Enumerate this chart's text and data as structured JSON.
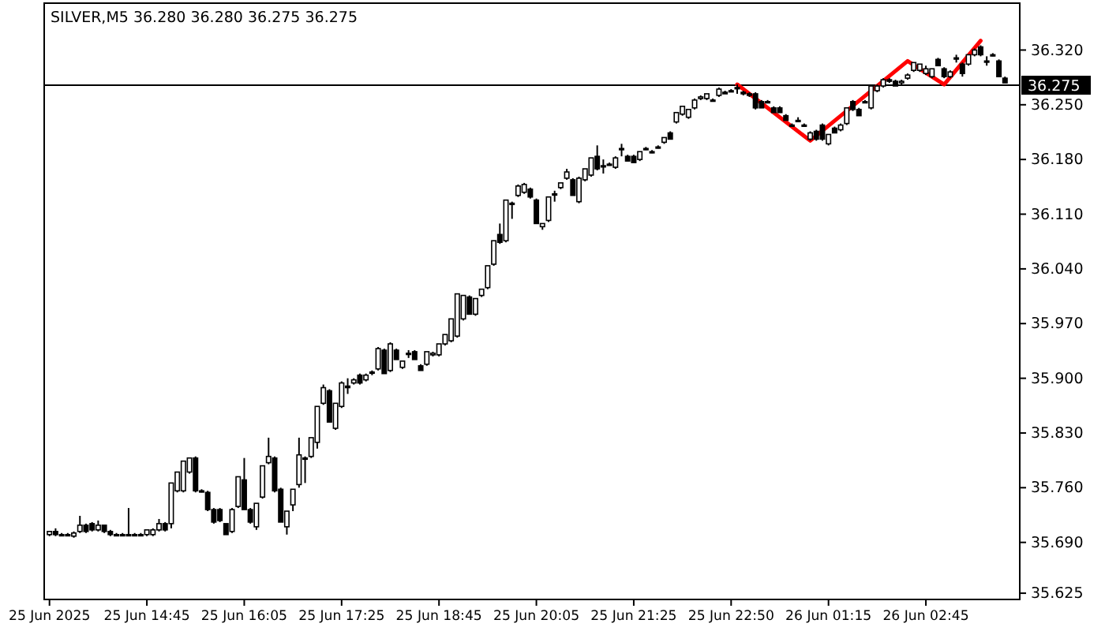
{
  "chart_data": {
    "type": "candlestick",
    "title": "SILVER,M5  36.280 36.280 36.275 36.275",
    "categories": [
      "25 Jun 2025",
      null,
      null,
      null,
      null,
      null,
      null,
      null,
      null,
      null,
      null,
      null,
      null,
      null,
      null,
      null,
      "25 Jun 14:45",
      null,
      null,
      null,
      null,
      null,
      null,
      null,
      null,
      null,
      null,
      null,
      null,
      null,
      null,
      null,
      "25 Jun 16:05",
      null,
      null,
      null,
      null,
      null,
      null,
      null,
      null,
      null,
      null,
      null,
      null,
      null,
      null,
      null,
      "25 Jun 17:25",
      null,
      null,
      null,
      null,
      null,
      null,
      null,
      null,
      null,
      null,
      null,
      null,
      null,
      null,
      null,
      "25 Jun 18:45",
      null,
      null,
      null,
      null,
      null,
      null,
      null,
      null,
      null,
      null,
      null,
      null,
      null,
      null,
      null,
      "25 Jun 20:05",
      null,
      null,
      null,
      null,
      null,
      null,
      null,
      null,
      null,
      null,
      null,
      null,
      null,
      null,
      null,
      "25 Jun 21:25",
      null,
      null,
      null,
      null,
      null,
      null,
      null,
      null,
      null,
      null,
      null,
      null,
      null,
      null,
      null,
      "25 Jun 22:50",
      null,
      null,
      null,
      null,
      null,
      null,
      null,
      null,
      null,
      null,
      null,
      null,
      null,
      null,
      null,
      "26 Jun 01:15",
      null,
      null,
      null,
      null,
      null,
      null,
      null,
      null,
      null,
      null,
      null,
      null,
      null,
      null,
      null,
      "26 Jun 02:45",
      null,
      null,
      null,
      null,
      null,
      null,
      null,
      null,
      null,
      null,
      null,
      null,
      null
    ],
    "ohlc": [
      [
        35.7,
        35.704,
        35.698,
        35.704
      ],
      [
        35.704,
        35.708,
        35.698,
        35.7
      ],
      [
        35.7,
        35.702,
        35.698,
        35.7
      ],
      [
        35.7,
        35.702,
        35.698,
        35.7
      ],
      [
        35.698,
        35.704,
        35.696,
        35.702
      ],
      [
        35.704,
        35.724,
        35.702,
        35.712
      ],
      [
        35.712,
        35.714,
        35.702,
        35.704
      ],
      [
        35.714,
        35.716,
        35.704,
        35.706
      ],
      [
        35.706,
        35.718,
        35.704,
        35.712
      ],
      [
        35.712,
        35.712,
        35.702,
        35.704
      ],
      [
        35.704,
        35.706,
        35.698,
        35.7
      ],
      [
        35.7,
        35.702,
        35.698,
        35.7
      ],
      [
        35.7,
        35.702,
        35.698,
        35.7
      ],
      [
        35.7,
        35.734,
        35.698,
        35.7
      ],
      [
        35.7,
        35.702,
        35.698,
        35.7
      ],
      [
        35.7,
        35.702,
        35.698,
        35.7
      ],
      [
        35.7,
        35.706,
        35.698,
        35.706
      ],
      [
        35.7,
        35.708,
        35.698,
        35.706
      ],
      [
        35.706,
        35.72,
        35.704,
        35.714
      ],
      [
        35.714,
        35.716,
        35.704,
        35.706
      ],
      [
        35.714,
        35.766,
        35.708,
        35.766
      ],
      [
        35.756,
        35.78,
        35.754,
        35.78
      ],
      [
        35.756,
        35.794,
        35.754,
        35.794
      ],
      [
        35.78,
        35.798,
        35.778,
        35.798
      ],
      [
        35.798,
        35.8,
        35.754,
        35.756
      ],
      [
        35.756,
        35.758,
        35.754,
        35.756
      ],
      [
        35.754,
        35.756,
        35.73,
        35.732
      ],
      [
        35.732,
        35.734,
        35.714,
        35.716
      ],
      [
        35.732,
        35.734,
        35.716,
        35.718
      ],
      [
        35.714,
        35.714,
        35.7,
        35.7
      ],
      [
        35.704,
        35.734,
        35.702,
        35.732
      ],
      [
        35.736,
        35.774,
        35.734,
        35.774
      ],
      [
        35.77,
        35.798,
        35.732,
        35.732
      ],
      [
        35.732,
        35.734,
        35.714,
        35.716
      ],
      [
        35.71,
        35.74,
        35.706,
        35.74
      ],
      [
        35.748,
        35.788,
        35.746,
        35.788
      ],
      [
        35.792,
        35.824,
        35.79,
        35.8
      ],
      [
        35.798,
        35.8,
        35.754,
        35.756
      ],
      [
        35.758,
        35.76,
        35.716,
        35.716
      ],
      [
        35.71,
        35.73,
        35.7,
        35.73
      ],
      [
        35.738,
        35.758,
        35.73,
        35.758
      ],
      [
        35.764,
        35.824,
        35.76,
        35.802
      ],
      [
        35.798,
        35.8,
        35.766,
        35.798
      ],
      [
        35.8,
        35.824,
        35.798,
        35.824
      ],
      [
        35.818,
        35.864,
        35.81,
        35.864
      ],
      [
        35.868,
        35.892,
        35.866,
        35.888
      ],
      [
        35.884,
        35.886,
        35.844,
        35.844
      ],
      [
        35.836,
        35.868,
        35.834,
        35.868
      ],
      [
        35.864,
        35.896,
        35.862,
        35.894
      ],
      [
        35.89,
        35.9,
        35.88,
        35.888
      ],
      [
        35.894,
        35.9,
        35.892,
        35.898
      ],
      [
        35.904,
        35.906,
        35.892,
        35.894
      ],
      [
        35.898,
        35.906,
        35.896,
        35.904
      ],
      [
        35.908,
        35.91,
        35.904,
        35.908
      ],
      [
        35.912,
        35.94,
        35.91,
        35.938
      ],
      [
        35.936,
        35.938,
        35.906,
        35.906
      ],
      [
        35.91,
        35.946,
        35.908,
        35.944
      ],
      [
        35.936,
        35.938,
        35.924,
        35.924
      ],
      [
        35.914,
        35.922,
        35.912,
        35.922
      ],
      [
        35.932,
        35.936,
        35.926,
        35.932
      ],
      [
        35.934,
        35.936,
        35.924,
        35.924
      ],
      [
        35.916,
        35.918,
        35.91,
        35.91
      ],
      [
        35.918,
        35.934,
        35.916,
        35.934
      ],
      [
        35.93,
        35.934,
        35.928,
        35.932
      ],
      [
        35.93,
        35.944,
        35.928,
        35.944
      ],
      [
        35.944,
        35.956,
        35.942,
        35.956
      ],
      [
        35.948,
        35.976,
        35.946,
        35.976
      ],
      [
        35.954,
        36.008,
        35.952,
        36.008
      ],
      [
        35.976,
        36.006,
        35.974,
        36.006
      ],
      [
        36.004,
        36.006,
        35.982,
        35.982
      ],
      [
        35.982,
        36.002,
        35.98,
        36.002
      ],
      [
        36.006,
        36.014,
        36.004,
        36.014
      ],
      [
        36.016,
        36.044,
        36.014,
        36.044
      ],
      [
        36.046,
        36.076,
        36.044,
        36.076
      ],
      [
        36.084,
        36.098,
        36.072,
        36.074
      ],
      [
        36.076,
        36.128,
        36.074,
        36.128
      ],
      [
        36.124,
        36.126,
        36.104,
        36.124
      ],
      [
        36.134,
        36.148,
        36.132,
        36.146
      ],
      [
        36.138,
        36.15,
        36.136,
        36.148
      ],
      [
        36.142,
        36.144,
        36.13,
        36.132
      ],
      [
        36.128,
        36.13,
        36.098,
        36.098
      ],
      [
        36.094,
        36.098,
        36.09,
        36.098
      ],
      [
        36.102,
        36.132,
        36.1,
        36.132
      ],
      [
        36.136,
        36.14,
        36.126,
        36.136
      ],
      [
        36.144,
        36.15,
        36.142,
        36.15
      ],
      [
        36.156,
        36.168,
        36.154,
        36.164
      ],
      [
        36.154,
        36.156,
        36.134,
        36.134
      ],
      [
        36.126,
        36.158,
        36.124,
        36.156
      ],
      [
        36.154,
        36.168,
        36.152,
        36.168
      ],
      [
        36.16,
        36.182,
        36.158,
        36.182
      ],
      [
        36.184,
        36.198,
        36.166,
        36.168
      ],
      [
        36.172,
        36.18,
        36.162,
        36.172
      ],
      [
        36.174,
        36.176,
        36.172,
        36.174
      ],
      [
        36.17,
        36.184,
        36.168,
        36.182
      ],
      [
        36.194,
        36.2,
        36.184,
        36.194
      ],
      [
        36.184,
        36.186,
        36.178,
        36.178
      ],
      [
        36.184,
        36.186,
        36.176,
        36.176
      ],
      [
        36.18,
        36.19,
        36.178,
        36.19
      ],
      [
        36.194,
        36.196,
        36.192,
        36.194
      ],
      [
        36.19,
        36.192,
        36.188,
        36.19
      ],
      [
        36.196,
        36.198,
        36.194,
        36.196
      ],
      [
        36.202,
        36.208,
        36.2,
        36.208
      ],
      [
        36.214,
        36.216,
        36.206,
        36.206
      ],
      [
        36.228,
        36.24,
        36.226,
        36.24
      ],
      [
        36.238,
        36.248,
        36.236,
        36.248
      ],
      [
        36.234,
        36.244,
        36.232,
        36.244
      ],
      [
        36.246,
        36.258,
        36.244,
        36.256
      ],
      [
        36.258,
        36.262,
        36.256,
        36.26
      ],
      [
        36.258,
        36.264,
        36.256,
        36.264
      ],
      [
        36.256,
        36.258,
        36.254,
        36.256
      ],
      [
        36.262,
        36.272,
        36.26,
        36.27
      ],
      [
        36.266,
        36.268,
        36.264,
        36.264
      ],
      [
        36.268,
        36.27,
        36.266,
        36.268
      ],
      [
        36.272,
        36.276,
        36.264,
        36.272
      ],
      [
        36.266,
        36.268,
        36.262,
        36.264
      ],
      [
        36.264,
        36.266,
        36.26,
        36.262
      ],
      [
        36.264,
        36.266,
        36.244,
        36.246
      ],
      [
        36.254,
        36.256,
        36.246,
        36.246
      ],
      [
        36.254,
        36.256,
        36.252,
        36.254
      ],
      [
        36.246,
        36.248,
        36.24,
        36.24
      ],
      [
        36.246,
        36.248,
        36.24,
        36.24
      ],
      [
        36.236,
        36.238,
        36.23,
        36.23
      ],
      [
        36.224,
        36.226,
        36.222,
        36.224
      ],
      [
        36.23,
        36.234,
        36.228,
        36.23
      ],
      [
        36.224,
        36.226,
        36.222,
        36.224
      ],
      [
        36.206,
        36.216,
        36.204,
        36.214
      ],
      [
        36.216,
        36.218,
        36.204,
        36.206
      ],
      [
        36.224,
        36.226,
        36.204,
        36.206
      ],
      [
        36.2,
        36.212,
        36.198,
        36.212
      ],
      [
        36.22,
        36.222,
        36.214,
        36.214
      ],
      [
        36.218,
        36.226,
        36.216,
        36.224
      ],
      [
        36.226,
        36.246,
        36.224,
        36.246
      ],
      [
        36.254,
        36.256,
        36.242,
        36.244
      ],
      [
        36.244,
        36.246,
        36.236,
        36.236
      ],
      [
        36.254,
        36.256,
        36.252,
        36.254
      ],
      [
        36.246,
        36.276,
        36.244,
        36.274
      ],
      [
        36.268,
        36.276,
        36.266,
        36.274
      ],
      [
        36.274,
        36.284,
        36.272,
        36.282
      ],
      [
        36.282,
        36.284,
        36.278,
        36.28
      ],
      [
        36.28,
        36.282,
        36.274,
        36.274
      ],
      [
        36.278,
        36.282,
        36.276,
        36.28
      ],
      [
        36.284,
        36.29,
        36.282,
        36.288
      ],
      [
        36.294,
        36.304,
        36.292,
        36.304
      ],
      [
        36.294,
        36.302,
        36.292,
        36.302
      ],
      [
        36.29,
        36.3,
        36.288,
        36.296
      ],
      [
        36.286,
        36.296,
        36.284,
        36.296
      ],
      [
        36.308,
        36.31,
        36.3,
        36.3
      ],
      [
        36.296,
        36.298,
        36.284,
        36.286
      ],
      [
        36.286,
        36.294,
        36.284,
        36.292
      ],
      [
        36.31,
        36.314,
        36.304,
        36.31
      ],
      [
        36.302,
        36.304,
        36.286,
        36.29
      ],
      [
        36.302,
        36.314,
        36.3,
        36.314
      ],
      [
        36.314,
        36.322,
        36.312,
        36.32
      ],
      [
        36.324,
        36.326,
        36.312,
        36.314
      ],
      [
        36.306,
        36.312,
        36.3,
        36.306
      ],
      [
        36.314,
        36.316,
        36.312,
        36.314
      ],
      [
        36.306,
        36.308,
        36.286,
        36.286
      ],
      [
        36.284,
        36.286,
        36.278,
        36.278
      ]
    ],
    "series": [
      {
        "type": "line",
        "color": "#ff0000",
        "values": [
          null,
          null,
          null,
          null,
          null,
          null,
          null,
          null,
          null,
          null,
          null,
          null,
          null,
          null,
          null,
          null,
          null,
          null,
          null,
          null,
          null,
          null,
          null,
          null,
          null,
          null,
          null,
          null,
          null,
          null,
          null,
          null,
          null,
          null,
          null,
          null,
          null,
          null,
          null,
          null,
          null,
          null,
          null,
          null,
          null,
          null,
          null,
          null,
          null,
          null,
          null,
          null,
          null,
          null,
          null,
          null,
          null,
          null,
          null,
          null,
          null,
          null,
          null,
          null,
          null,
          null,
          null,
          null,
          null,
          null,
          null,
          null,
          null,
          null,
          null,
          null,
          null,
          null,
          null,
          null,
          null,
          null,
          null,
          null,
          null,
          null,
          null,
          null,
          null,
          null,
          null,
          null,
          null,
          null,
          null,
          null,
          null,
          null,
          null,
          null,
          null,
          null,
          null,
          null,
          null,
          null,
          null,
          null,
          null,
          null,
          null,
          null,
          null,
          36.276,
          null,
          null,
          null,
          null,
          null,
          null,
          null,
          null,
          null,
          null,
          null,
          36.204,
          null,
          null,
          null,
          null,
          null,
          null,
          null,
          null,
          null,
          null,
          null,
          null,
          null,
          null,
          null,
          36.306,
          null,
          null,
          null,
          null,
          null,
          36.276,
          null,
          null,
          null,
          null,
          null,
          36.332,
          null,
          null,
          null,
          null
        ]
      }
    ],
    "ylim": [
      35.617,
      36.38
    ],
    "yticks": [
      {
        "value": 36.32,
        "label": "36.320"
      },
      {
        "value": 36.25,
        "label": "36.250"
      },
      {
        "value": 36.18,
        "label": "36.180"
      },
      {
        "value": 36.11,
        "label": "36.110"
      },
      {
        "value": 36.04,
        "label": "36.040"
      },
      {
        "value": 35.97,
        "label": "35.970"
      },
      {
        "value": 35.9,
        "label": "35.900"
      },
      {
        "value": 35.83,
        "label": "35.830"
      },
      {
        "value": 35.76,
        "label": "35.760"
      },
      {
        "value": 35.69,
        "label": "35.690"
      },
      {
        "value": 35.625,
        "label": "35.625"
      }
    ],
    "ref_lines": [
      {
        "axis": "y",
        "value": 36.275,
        "label": "36.275",
        "color": "#000000"
      }
    ],
    "grid": false
  }
}
